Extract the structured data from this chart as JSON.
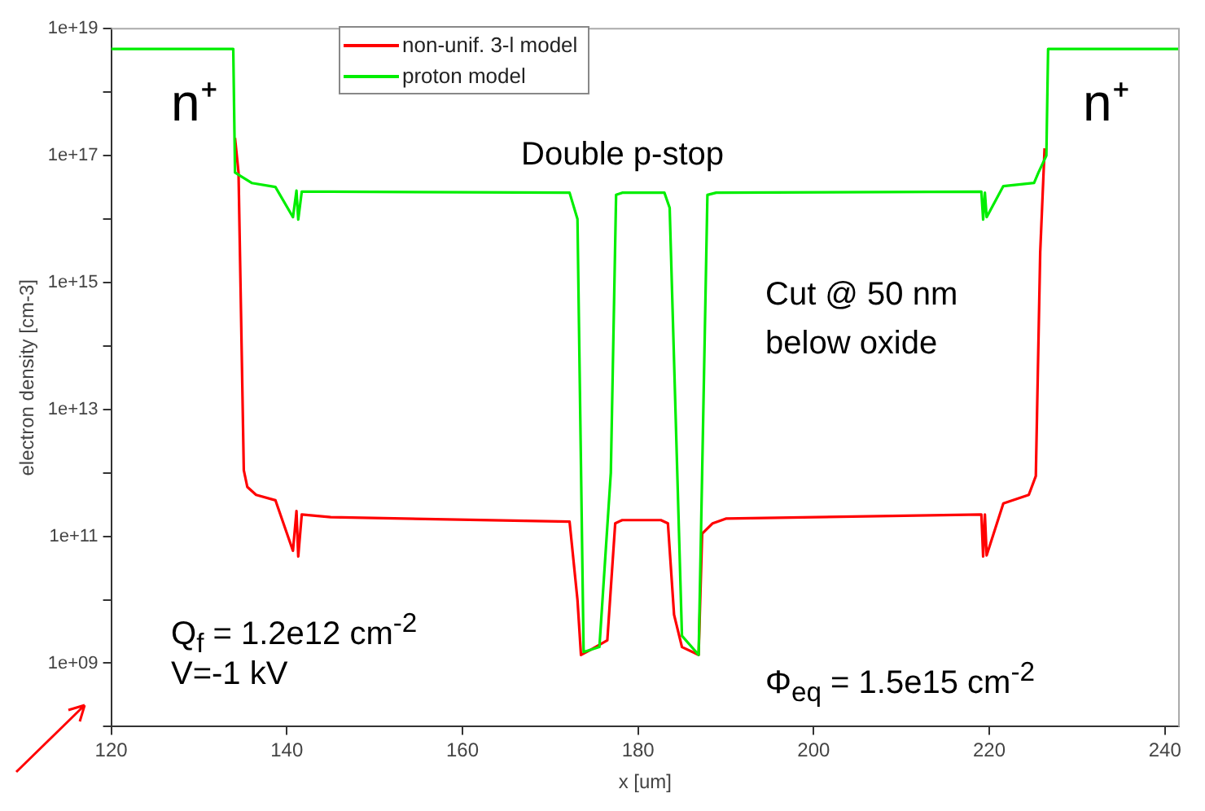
{
  "chart_data": {
    "type": "line",
    "xlabel": "x [um]",
    "ylabel": "electron density [cm-3]",
    "log": "y",
    "grid": false,
    "legend": "top",
    "marker": "none",
    "line_style": "solid",
    "xlim": [
      120,
      241.6
    ],
    "xticks": [
      120,
      140,
      160,
      180,
      200,
      220,
      240
    ],
    "ylim": [
      100000000.0,
      1e+19
    ],
    "yticks": [
      {
        "value": 100000000.0,
        "label": null
      },
      {
        "value": 1000000000.0,
        "label": "1e+09"
      },
      {
        "value": 10000000000.0,
        "label": null
      },
      {
        "value": 100000000000.0,
        "label": "1e+11"
      },
      {
        "value": 1000000000000.0,
        "label": null
      },
      {
        "value": 10000000000000.0,
        "label": "1e+13"
      },
      {
        "value": 100000000000000.0,
        "label": null
      },
      {
        "value": 1000000000000000.0,
        "label": "1e+15"
      },
      {
        "value": 1e+16,
        "label": null
      },
      {
        "value": 1e+17,
        "label": "1e+17"
      },
      {
        "value": 1e+18,
        "label": null
      },
      {
        "value": 1e+19,
        "label": "1e+19"
      }
    ],
    "series": [
      {
        "name": "non-unif. 3-l model",
        "color": "#ff0000",
        "x": [
          134.1,
          134.5,
          135.1,
          135.5,
          136.5,
          138.7,
          140.7,
          141.1,
          141.3,
          141.7,
          145,
          172.2,
          173.1,
          173.5,
          174.5,
          176.5,
          177.4,
          178.2,
          182.6,
          183.4,
          184.1,
          185,
          186.9,
          187.3,
          188.5,
          190,
          219.1,
          219.3,
          219.5,
          219.7,
          221.6,
          224.5,
          225.3,
          225.8,
          226.3
        ],
        "values": [
          1.9e+17,
          5.4e+16,
          1100000000000.0,
          600000000000.0,
          450000000000.0,
          370000000000.0,
          59000000000.0,
          250000000000.0,
          48000000000.0,
          220000000000.0,
          200000000000.0,
          170000000000.0,
          10000000000.0,
          1350000000.0,
          1600000000.0,
          2300000000.0,
          160000000000.0,
          180000000000.0,
          180000000000.0,
          160000000000.0,
          5800000000.0,
          1800000000.0,
          1350000000.0,
          110000000000.0,
          160000000000.0,
          190000000000.0,
          220000000000.0,
          48000000000.0,
          220000000000.0,
          50000000000.0,
          330000000000.0,
          450000000000.0,
          890000000000.0,
          3000000000000000.0,
          1.3e+17
        ]
      },
      {
        "name": "proton model",
        "color": "#00ee00",
        "x": [
          120,
          133.9,
          134.1,
          134.5,
          136,
          138.7,
          140.7,
          141.1,
          141.3,
          141.7,
          145,
          172.2,
          173.1,
          173.8,
          175.6,
          176.9,
          177.5,
          178.2,
          183,
          183.6,
          185,
          186.9,
          187.3,
          187.9,
          188.9,
          219.1,
          219.3,
          219.5,
          219.7,
          221.6,
          225.1,
          225.6,
          226.5,
          226.7,
          241.6
        ],
        "values": [
          4.8e+18,
          4.8e+18,
          5.4e+16,
          5e+16,
          3.7e+16,
          3.2e+16,
          1.07e+16,
          2.8e+16,
          9800000000000000.0,
          2.7e+16,
          2.7e+16,
          2.6e+16,
          1e+16,
          1500000000.0,
          1800000000.0,
          1000000000000.0,
          2.4e+16,
          2.6e+16,
          2.6e+16,
          1.5e+16,
          2700000000.0,
          1350000000.0,
          1000000000000.0,
          2.4e+16,
          2.6e+16,
          2.7e+16,
          9800000000000000.0,
          2.6e+16,
          1.07e+16,
          3.3e+16,
          3.7e+16,
          5.4e+16,
          1e+17,
          4.8e+18,
          4.8e+18
        ]
      }
    ],
    "annotations": [
      "n⁺",
      "n⁺",
      "Double p-stop",
      "Cut @ 50 nm",
      "below oxide",
      "Q$_{f}$ = 1.2e12 cm$^{-2}$",
      "V=-1 kV",
      "Φ$_{eq}$ = 1.5e15 cm$^{-2}$"
    ]
  }
}
